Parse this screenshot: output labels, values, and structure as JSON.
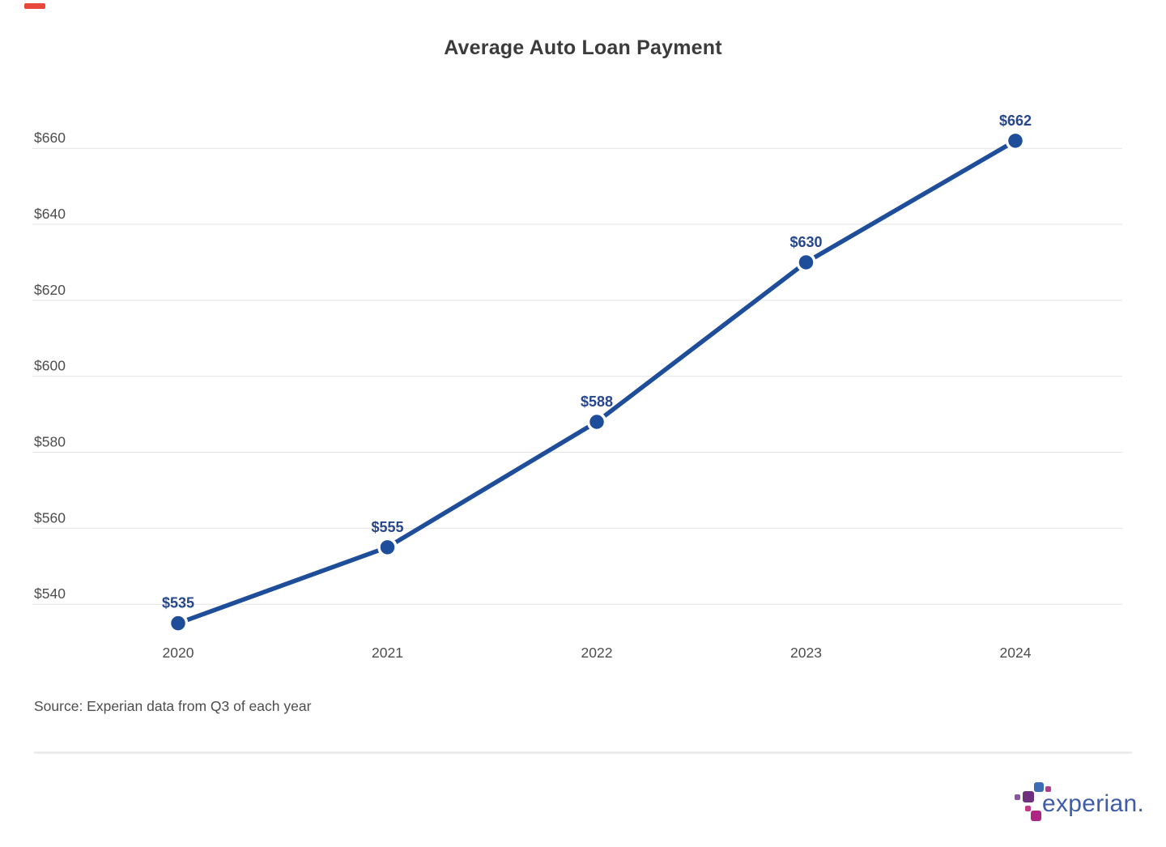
{
  "theme": {
    "background": "#ffffff",
    "title_color": "#3b3b3b",
    "axis_text_color": "#4d4d4d",
    "grid_color": "#e4e4e4",
    "line_color": "#1e4e9a",
    "point_fill": "#1e4e9a",
    "point_ring": "#ffffff",
    "data_label_color": "#26478d",
    "divider_color": "#ececec",
    "logo_text_color": "#3f5ca9"
  },
  "decorations": {
    "top_left_marker_color": "#e8483b"
  },
  "chart_data": {
    "type": "line",
    "title": "Average Auto Loan Payment",
    "categories": [
      "2020",
      "2021",
      "2022",
      "2023",
      "2024"
    ],
    "series": [
      {
        "name": "Average Auto Loan Payment",
        "values": [
          535,
          555,
          588,
          630,
          662
        ]
      }
    ],
    "point_labels": [
      "$535",
      "$555",
      "$588",
      "$630",
      "$662"
    ],
    "y_ticks": [
      540,
      560,
      580,
      600,
      620,
      640,
      660
    ],
    "y_tick_labels": [
      "$540",
      "$560",
      "$580",
      "$600",
      "$620",
      "$640",
      "$660"
    ],
    "ylim": [
      533,
      666
    ],
    "xlabel": "",
    "ylabel": "",
    "grid": true,
    "legend": false,
    "source_note": "Source: Experian data from Q3 of each year"
  },
  "logo": {
    "wordmark": "experian",
    "trademark_dot": ".",
    "dot_colors": [
      "#3d6bb4",
      "#b23a8f",
      "#6d2f7e",
      "#8a52a0",
      "#c23a87",
      "#b02483"
    ]
  }
}
